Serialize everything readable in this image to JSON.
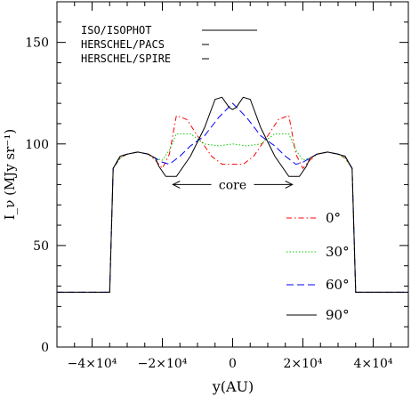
{
  "chart_data": {
    "type": "line",
    "xlabel": "y(AU)",
    "ylabel": "I_ν (MJy sr⁻¹)",
    "xlim": [
      -50000,
      50000
    ],
    "ylim": [
      0,
      170
    ],
    "x_ticks": [
      {
        "value": -40000,
        "label": "−4×10⁴"
      },
      {
        "value": -20000,
        "label": "−2×10⁴"
      },
      {
        "value": 0,
        "label": "0"
      },
      {
        "value": 20000,
        "label": "2×10⁴"
      },
      {
        "value": 40000,
        "label": "4×10⁴"
      }
    ],
    "y_ticks": [
      {
        "value": 0,
        "label": "0"
      },
      {
        "value": 50,
        "label": "50"
      },
      {
        "value": 100,
        "label": "100"
      },
      {
        "value": 150,
        "label": "150"
      }
    ],
    "instrument_legend": [
      {
        "name": "ISO/ISOPHOT",
        "line_width": 1
      },
      {
        "name": "HERSCHEL/PACS",
        "line_width": 1
      },
      {
        "name": "HERSCHEL/SPIRE",
        "line_width": 1
      }
    ],
    "annotation": {
      "text": "core",
      "x_from": -17000,
      "x_to": 17000,
      "y": 80
    },
    "series": [
      {
        "name": "0°",
        "color": "#ff0000",
        "dash": "6,3,1.5,3",
        "x": [
          -50000,
          -35000,
          -34000,
          -32000,
          -30000,
          -27000,
          -24000,
          -22000,
          -20000,
          -18000,
          -16000,
          -13000,
          -10000,
          -6000,
          -3000,
          0,
          3000,
          6000,
          10000,
          13000,
          16000,
          18000,
          20000,
          22000,
          24000,
          27000,
          30000,
          32000,
          34000,
          35000,
          50000
        ],
        "y": [
          27,
          27,
          88,
          93,
          95,
          96,
          95,
          92,
          88,
          95,
          114,
          112,
          104,
          94,
          90,
          90,
          90,
          94,
          104,
          112,
          114,
          95,
          88,
          92,
          95,
          96,
          95,
          93,
          88,
          27,
          27
        ]
      },
      {
        "name": "30°",
        "color": "#00cc00",
        "dash": "1.5,2",
        "x": [
          -50000,
          -35000,
          -34000,
          -32000,
          -30000,
          -27000,
          -24000,
          -22000,
          -20000,
          -18000,
          -16000,
          -12000,
          -8000,
          -4000,
          0,
          4000,
          8000,
          12000,
          16000,
          18000,
          20000,
          22000,
          24000,
          27000,
          30000,
          32000,
          34000,
          35000,
          50000
        ],
        "y": [
          27,
          27,
          88,
          93,
          95,
          96,
          95,
          93,
          92,
          97,
          105,
          105,
          100,
          99,
          100,
          99,
          100,
          105,
          105,
          97,
          92,
          93,
          95,
          96,
          95,
          93,
          88,
          27,
          27
        ]
      },
      {
        "name": "60°",
        "color": "#0000ff",
        "dash": "8,4",
        "x": [
          -50000,
          -35000,
          -34000,
          -32000,
          -30000,
          -27000,
          -24000,
          -22000,
          -20000,
          -18000,
          -15000,
          -12000,
          -8000,
          -4000,
          0,
          4000,
          8000,
          12000,
          15000,
          18000,
          20000,
          22000,
          24000,
          27000,
          30000,
          32000,
          34000,
          35000,
          50000
        ],
        "y": [
          27,
          27,
          88,
          94,
          95,
          96,
          95,
          93,
          91,
          90,
          94,
          99,
          104,
          113,
          120,
          113,
          104,
          99,
          94,
          90,
          91,
          93,
          95,
          96,
          95,
          94,
          88,
          27,
          27
        ]
      },
      {
        "name": "90°",
        "color": "#000000",
        "dash": "",
        "x": [
          -50000,
          -35000,
          -34000,
          -32000,
          -30000,
          -27000,
          -24000,
          -22000,
          -21000,
          -19000,
          -16000,
          -12000,
          -8000,
          -5000,
          -3000,
          -1000,
          0,
          1000,
          3000,
          5000,
          8000,
          12000,
          16000,
          19000,
          21000,
          22000,
          24000,
          27000,
          30000,
          32000,
          34000,
          35000,
          50000
        ],
        "y": [
          27,
          27,
          88,
          94,
          95,
          96,
          95,
          93,
          89,
          84,
          84,
          94,
          108,
          122,
          123,
          118,
          117,
          118,
          123,
          122,
          108,
          94,
          84,
          84,
          89,
          93,
          95,
          96,
          95,
          94,
          88,
          27,
          27
        ]
      }
    ]
  }
}
